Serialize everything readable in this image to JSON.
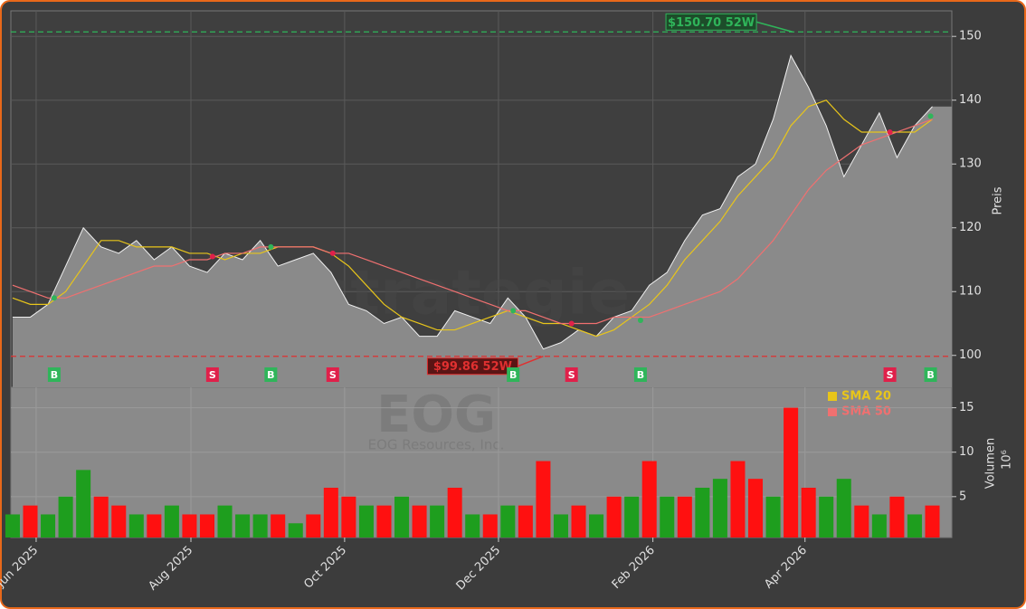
{
  "chart_data": [
    {
      "type": "area",
      "watermark": "forexstrategie.de",
      "ylabel": "Preis",
      "xlim": [
        -0.1,
        53.1
      ],
      "ylim": [
        95,
        154
      ],
      "yticks": [
        100,
        110,
        120,
        130,
        140,
        150
      ],
      "grid": true,
      "color": "#8a8a8a",
      "line_color": "#f0f0f0",
      "values": [
        106,
        106,
        108,
        114,
        120,
        117,
        116,
        118,
        115,
        117,
        114,
        113,
        116,
        115,
        118,
        114,
        115,
        116,
        113,
        108,
        107,
        105,
        106,
        103,
        103,
        107,
        106,
        105,
        109,
        106,
        101,
        102,
        104,
        103,
        106,
        107,
        111,
        113,
        118,
        122,
        123,
        128,
        130,
        137,
        147,
        142,
        136,
        128,
        133,
        138,
        131,
        136,
        139
      ],
      "series": [
        {
          "name": "SMA 20",
          "color": "#e8c51a",
          "values": [
            109,
            108,
            108,
            110,
            114,
            118,
            118,
            117,
            117,
            117,
            116,
            116,
            115,
            116,
            116,
            117,
            117,
            117,
            116,
            114,
            111,
            108,
            106,
            105,
            104,
            104,
            105,
            106,
            107,
            106,
            105,
            105,
            104,
            103,
            104,
            106,
            108,
            111,
            115,
            118,
            121,
            125,
            128,
            131,
            136,
            139,
            140,
            137,
            135,
            135,
            135,
            135,
            137
          ]
        },
        {
          "name": "SMA 50",
          "color": "#f07070",
          "values": [
            111,
            110,
            109,
            109,
            110,
            111,
            112,
            113,
            114,
            114,
            115,
            115,
            116,
            116,
            117,
            117,
            117,
            117,
            116,
            116,
            115,
            114,
            113,
            112,
            111,
            110,
            109,
            108,
            107,
            107,
            106,
            105,
            105,
            105,
            106,
            106,
            106,
            107,
            108,
            109,
            110,
            112,
            115,
            118,
            122,
            126,
            129,
            131,
            133,
            134,
            135,
            136,
            137
          ]
        }
      ],
      "annotations": [
        {
          "value": 150.7,
          "label": "$150.70 52W",
          "x": 44.1,
          "color": "#2fb55a"
        },
        {
          "value": 99.86,
          "label": "$99.86 52W",
          "x": 30.0,
          "color": "#e03030"
        }
      ],
      "signals": [
        {
          "label": "B",
          "x": 2.35,
          "price": 109
        },
        {
          "label": "S",
          "x": 11.3,
          "price": 115.5
        },
        {
          "label": "B",
          "x": 14.6,
          "price": 117
        },
        {
          "label": "S",
          "x": 18.1,
          "price": 116
        },
        {
          "label": "B",
          "x": 28.3,
          "price": 107
        },
        {
          "label": "S",
          "x": 31.6,
          "price": 105
        },
        {
          "label": "B",
          "x": 35.5,
          "price": 105.5
        },
        {
          "label": "S",
          "x": 49.6,
          "price": 135
        },
        {
          "label": "B",
          "x": 51.9,
          "price": 137.5
        }
      ]
    },
    {
      "type": "bar",
      "title": "EOG",
      "subtitle": "EOG Resources, Inc.",
      "ylabel": "Volumen",
      "unit": "10⁶",
      "xlim": [
        -0.1,
        53.1
      ],
      "ylim": [
        0.4,
        17.3
      ],
      "yticks": [
        5,
        10,
        15
      ],
      "grid": true,
      "xticks": [
        {
          "value": 1.33,
          "label": "Jun 2025"
        },
        {
          "value": 10.08,
          "label": "Aug 2025"
        },
        {
          "value": 18.77,
          "label": "Oct 2025"
        },
        {
          "value": 27.47,
          "label": "Dec 2025"
        },
        {
          "value": 36.2,
          "label": "Feb 2026"
        },
        {
          "value": 44.8,
          "label": "Apr 2026"
        }
      ],
      "values": [
        3,
        4,
        3,
        5,
        8,
        5,
        4,
        3,
        3,
        4,
        3,
        3,
        4,
        3,
        3,
        3,
        2,
        3,
        6,
        5,
        4,
        4,
        5,
        4,
        4,
        6,
        3,
        3,
        4,
        4,
        9,
        3,
        4,
        3,
        5,
        5,
        9,
        5,
        5,
        6,
        7,
        9,
        7,
        5,
        15,
        6,
        5,
        7,
        4,
        3,
        5,
        3,
        4
      ],
      "colors": [
        "#1e9e1e",
        "#ff1010",
        "#1e9e1e",
        "#1e9e1e",
        "#1e9e1e",
        "#ff1010",
        "#ff1010",
        "#1e9e1e",
        "#ff1010",
        "#1e9e1e",
        "#ff1010",
        "#ff1010",
        "#1e9e1e",
        "#1e9e1e",
        "#1e9e1e",
        "#ff1010",
        "#1e9e1e",
        "#ff1010",
        "#ff1010",
        "#ff1010",
        "#1e9e1e",
        "#ff1010",
        "#1e9e1e",
        "#ff1010",
        "#1e9e1e",
        "#ff1010",
        "#1e9e1e",
        "#ff1010",
        "#1e9e1e",
        "#ff1010",
        "#ff1010",
        "#1e9e1e",
        "#ff1010",
        "#1e9e1e",
        "#ff1010",
        "#1e9e1e",
        "#ff1010",
        "#1e9e1e",
        "#ff1010",
        "#1e9e1e",
        "#1e9e1e",
        "#ff1010",
        "#ff1010",
        "#1e9e1e",
        "#ff1010",
        "#ff1010",
        "#1e9e1e",
        "#1e9e1e",
        "#ff1010",
        "#1e9e1e",
        "#ff1010",
        "#1e9e1e",
        "#ff1010"
      ]
    }
  ]
}
